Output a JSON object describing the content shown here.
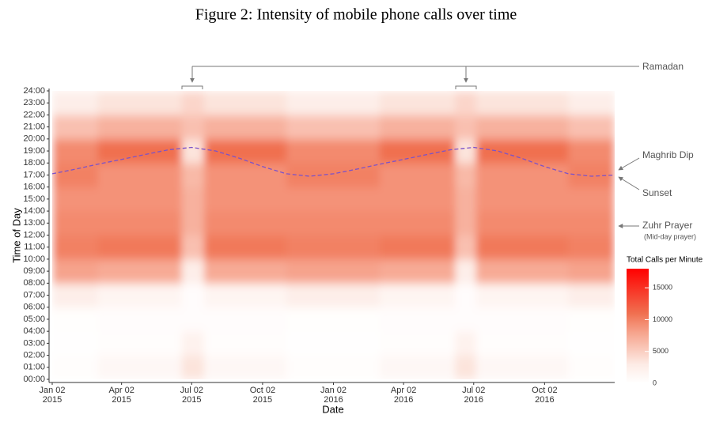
{
  "chart_data": {
    "type": "heatmap",
    "title": "Figure 2: Intensity of mobile phone calls over time",
    "xlabel": "Date",
    "ylabel": "Time of Day",
    "xlim": [
      "2015-01-02",
      "2017-01-01"
    ],
    "xticks": [
      {
        "value": "2015-01-02",
        "label": "Jan 02\n2015"
      },
      {
        "value": "2015-04-02",
        "label": "Apr 02\n2015"
      },
      {
        "value": "2015-07-02",
        "label": "Jul 02\n2015"
      },
      {
        "value": "2015-10-02",
        "label": "Oct 02\n2015"
      },
      {
        "value": "2016-01-02",
        "label": "Jan 02\n2016"
      },
      {
        "value": "2016-04-02",
        "label": "Apr 02\n2016"
      },
      {
        "value": "2016-07-02",
        "label": "Jul 02\n2016"
      },
      {
        "value": "2016-10-02",
        "label": "Oct 02\n2016"
      }
    ],
    "ylim": [
      0,
      24
    ],
    "yticks": [
      {
        "value": 0,
        "label": "00:00"
      },
      {
        "value": 1,
        "label": "01:00"
      },
      {
        "value": 2,
        "label": "02:00"
      },
      {
        "value": 3,
        "label": "03:00"
      },
      {
        "value": 4,
        "label": "04:00"
      },
      {
        "value": 5,
        "label": "05:00"
      },
      {
        "value": 6,
        "label": "06:00"
      },
      {
        "value": 7,
        "label": "07:00"
      },
      {
        "value": 8,
        "label": "08:00"
      },
      {
        "value": 9,
        "label": "09:00"
      },
      {
        "value": 10,
        "label": "10:00"
      },
      {
        "value": 11,
        "label": "11:00"
      },
      {
        "value": 12,
        "label": "12:00"
      },
      {
        "value": 13,
        "label": "13:00"
      },
      {
        "value": 14,
        "label": "14:00"
      },
      {
        "value": 15,
        "label": "15:00"
      },
      {
        "value": 16,
        "label": "16:00"
      },
      {
        "value": 17,
        "label": "17:00"
      },
      {
        "value": 18,
        "label": "18:00"
      },
      {
        "value": 19,
        "label": "19:00"
      },
      {
        "value": 20,
        "label": "20:00"
      },
      {
        "value": 21,
        "label": "21:00"
      },
      {
        "value": 22,
        "label": "22:00"
      },
      {
        "value": 23,
        "label": "23:00"
      },
      {
        "value": 24,
        "label": "24:00"
      }
    ],
    "x_edges": [
      "2015-01-02",
      "2015-03-02",
      "2015-05-02",
      "2015-06-19",
      "2015-07-18",
      "2015-09-02",
      "2015-11-02",
      "2016-01-02",
      "2016-03-02",
      "2016-05-02",
      "2016-06-08",
      "2016-07-05",
      "2016-09-02",
      "2016-11-02",
      "2017-01-01"
    ],
    "y_edges": [
      0,
      2,
      4,
      6,
      8,
      10,
      12,
      14,
      16,
      18,
      20,
      22,
      24
    ],
    "z": [
      [
        300,
        1200,
        1200,
        3500,
        1200,
        1200,
        300,
        300,
        1200,
        1200,
        3500,
        1200,
        1200,
        300
      ],
      [
        100,
        300,
        300,
        2000,
        300,
        300,
        100,
        100,
        300,
        300,
        2000,
        300,
        300,
        100
      ],
      [
        200,
        400,
        400,
        400,
        400,
        400,
        200,
        200,
        400,
        400,
        400,
        400,
        400,
        200
      ],
      [
        2500,
        1500,
        1500,
        400,
        1500,
        1500,
        2500,
        2500,
        1500,
        1500,
        400,
        1500,
        1500,
        2500
      ],
      [
        8000,
        7500,
        7500,
        2500,
        7500,
        7500,
        8000,
        8000,
        7500,
        7500,
        2500,
        7500,
        7500,
        8000
      ],
      [
        10000,
        10500,
        10500,
        6000,
        10500,
        10500,
        10000,
        10000,
        10500,
        10500,
        6000,
        10500,
        10500,
        10000
      ],
      [
        9500,
        9500,
        9500,
        7000,
        9500,
        9500,
        9500,
        9500,
        9500,
        9500,
        7000,
        9500,
        9500,
        9500
      ],
      [
        9000,
        9000,
        9000,
        7000,
        9000,
        9000,
        9000,
        9000,
        9000,
        9000,
        7000,
        9000,
        9000,
        9000
      ],
      [
        10000,
        9000,
        9000,
        6500,
        9000,
        9000,
        10000,
        10000,
        9000,
        9000,
        6500,
        9000,
        9000,
        10000
      ],
      [
        9500,
        11000,
        11000,
        3500,
        11000,
        11000,
        9500,
        9500,
        11000,
        11000,
        3500,
        11000,
        11000,
        9500
      ],
      [
        6000,
        7000,
        7000,
        6000,
        7000,
        7000,
        6000,
        6000,
        7000,
        7000,
        6000,
        7000,
        7000,
        6000
      ],
      [
        2500,
        3500,
        3500,
        4500,
        3500,
        3500,
        2500,
        2500,
        3500,
        3500,
        4500,
        3500,
        3500,
        2500
      ]
    ],
    "colorscale": [
      [
        0,
        "#ffffff"
      ],
      [
        3000,
        "#fdebe5"
      ],
      [
        8000,
        "#f6a38c"
      ],
      [
        11000,
        "#f07050"
      ],
      [
        18000,
        "#ff0000"
      ]
    ],
    "colorbar": {
      "title": "Total Calls per Minute",
      "lim": [
        0,
        18000
      ],
      "ticks": [
        0,
        5000,
        10000,
        15000
      ]
    },
    "sunset": {
      "color": "#7b52c9",
      "x": [
        "2015-01-02",
        "2015-02-02",
        "2015-03-02",
        "2015-04-02",
        "2015-05-02",
        "2015-06-02",
        "2015-07-02",
        "2015-08-02",
        "2015-09-02",
        "2015-10-02",
        "2015-11-02",
        "2015-12-02",
        "2016-01-02",
        "2016-02-02",
        "2016-03-02",
        "2016-04-02",
        "2016-05-02",
        "2016-06-02",
        "2016-07-02",
        "2016-08-02",
        "2016-09-02",
        "2016-10-02",
        "2016-11-02",
        "2016-12-02",
        "2017-01-01"
      ],
      "values": [
        17.1,
        17.5,
        17.9,
        18.3,
        18.7,
        19.1,
        19.3,
        19.0,
        18.4,
        17.7,
        17.1,
        16.9,
        17.1,
        17.5,
        17.9,
        18.3,
        18.7,
        19.1,
        19.3,
        19.0,
        18.4,
        17.7,
        17.1,
        16.9,
        17.0
      ]
    },
    "annotations": {
      "ramadan": "Ramadan",
      "maghrib": "Maghrib Dip",
      "sunset": "Sunset",
      "zuhr": "Zuhr Prayer",
      "zuhr_note": "(Mid-day prayer)"
    }
  }
}
